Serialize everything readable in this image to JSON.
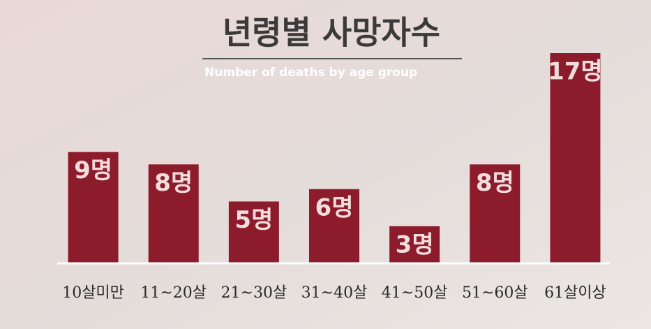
{
  "chart_data": {
    "type": "bar",
    "title": "년령별 사망자수",
    "subtitle": "Number of deaths by age group",
    "categories": [
      "10살미만",
      "11~20살",
      "21~30살",
      "31~40살",
      "41~50살",
      "51~60살",
      "61살이상"
    ],
    "values": [
      9,
      8,
      5,
      6,
      3,
      8,
      17
    ],
    "value_labels": [
      "9명",
      "8명",
      "5명",
      "6명",
      "3명",
      "8명",
      "17명"
    ],
    "color": "#8c1b2b"
  }
}
